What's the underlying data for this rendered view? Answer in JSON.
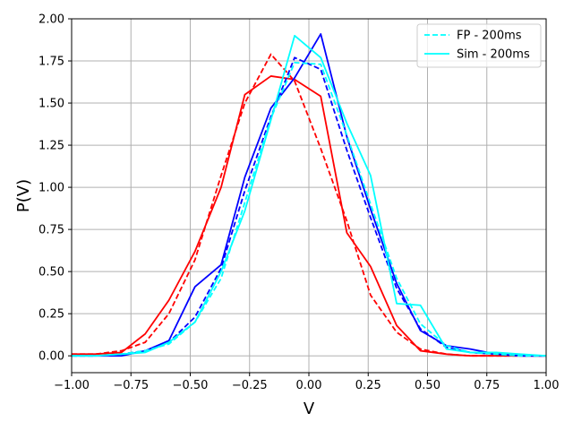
{
  "chart_data": {
    "type": "line",
    "xlabel": "V",
    "ylabel": "P(V)",
    "xlim": [
      -1.0,
      1.0
    ],
    "ylim": [
      -0.1,
      2.0
    ],
    "grid": true,
    "legend_placement": "top-right",
    "x_ticks": [
      "−1.00",
      "−0.75",
      "−0.50",
      "−0.25",
      "0.00",
      "0.25",
      "0.50",
      "0.75",
      "1.00"
    ],
    "x_tick_values": [
      -1.0,
      -0.75,
      -0.5,
      -0.25,
      0.0,
      0.25,
      0.5,
      0.75,
      1.0
    ],
    "y_ticks": [
      "0.00",
      "0.25",
      "0.50",
      "0.75",
      "1.00",
      "1.25",
      "1.50",
      "1.75",
      "2.00"
    ],
    "y_tick_values": [
      0.0,
      0.25,
      0.5,
      0.75,
      1.0,
      1.25,
      1.5,
      1.75,
      2.0
    ],
    "series": [
      {
        "color": "#ff0000",
        "dash": "dashed",
        "x": [
          -1.0,
          -0.9,
          -0.79,
          -0.69,
          -0.59,
          -0.48,
          -0.37,
          -0.27,
          -0.16,
          -0.06,
          0.05,
          0.16,
          0.26,
          0.37,
          0.47,
          0.58,
          0.68,
          0.79,
          0.89,
          1.0
        ],
        "y": [
          0.01,
          0.01,
          0.03,
          0.08,
          0.25,
          0.57,
          1.07,
          1.5,
          1.79,
          1.63,
          1.23,
          0.8,
          0.36,
          0.14,
          0.04,
          0.01,
          0.0,
          0.0,
          0.0,
          0.0
        ]
      },
      {
        "color": "#ff0000",
        "dash": "solid",
        "x": [
          -1.0,
          -0.9,
          -0.79,
          -0.69,
          -0.59,
          -0.48,
          -0.37,
          -0.27,
          -0.16,
          -0.06,
          0.05,
          0.16,
          0.26,
          0.37,
          0.47,
          0.58,
          0.68,
          0.79,
          0.89,
          1.0
        ],
        "y": [
          0.01,
          0.01,
          0.02,
          0.13,
          0.33,
          0.62,
          1.0,
          1.55,
          1.66,
          1.64,
          1.54,
          0.73,
          0.53,
          0.18,
          0.03,
          0.01,
          0.0,
          0.0,
          0.0,
          0.0
        ]
      },
      {
        "color": "#0000ff",
        "dash": "dashed",
        "x": [
          -1.0,
          -0.9,
          -0.79,
          -0.69,
          -0.59,
          -0.48,
          -0.37,
          -0.27,
          -0.16,
          -0.06,
          0.05,
          0.16,
          0.26,
          0.37,
          0.47,
          0.58,
          0.68,
          0.79,
          0.89,
          1.0
        ],
        "y": [
          0.0,
          0.0,
          0.01,
          0.03,
          0.08,
          0.23,
          0.52,
          0.98,
          1.42,
          1.77,
          1.7,
          1.22,
          0.82,
          0.4,
          0.16,
          0.05,
          0.02,
          0.01,
          0.0,
          0.0
        ]
      },
      {
        "color": "#0000ff",
        "dash": "solid",
        "x": [
          -1.0,
          -0.9,
          -0.79,
          -0.69,
          -0.59,
          -0.48,
          -0.37,
          -0.27,
          -0.16,
          -0.06,
          0.05,
          0.16,
          0.26,
          0.37,
          0.47,
          0.58,
          0.68,
          0.79,
          0.89,
          1.0
        ],
        "y": [
          0.0,
          0.0,
          0.0,
          0.03,
          0.09,
          0.41,
          0.54,
          1.06,
          1.47,
          1.65,
          1.91,
          1.3,
          0.87,
          0.43,
          0.15,
          0.06,
          0.04,
          0.01,
          0.0,
          0.0
        ]
      },
      {
        "name": "FP - 200ms",
        "color": "#00ffff",
        "dash": "dashed",
        "x": [
          -1.0,
          -0.9,
          -0.79,
          -0.69,
          -0.59,
          -0.48,
          -0.37,
          -0.27,
          -0.16,
          -0.06,
          0.05,
          0.16,
          0.26,
          0.37,
          0.47,
          0.58,
          0.68,
          0.79,
          0.89,
          1.0
        ],
        "y": [
          0.0,
          0.0,
          0.01,
          0.03,
          0.07,
          0.2,
          0.46,
          0.91,
          1.41,
          1.74,
          1.73,
          1.31,
          0.9,
          0.46,
          0.19,
          0.06,
          0.02,
          0.01,
          0.0,
          0.0
        ]
      },
      {
        "name": "Sim - 200ms",
        "color": "#00ffff",
        "dash": "solid",
        "x": [
          -1.0,
          -0.9,
          -0.79,
          -0.69,
          -0.59,
          -0.48,
          -0.37,
          -0.27,
          -0.16,
          -0.06,
          0.05,
          0.16,
          0.26,
          0.37,
          0.47,
          0.58,
          0.68,
          0.79,
          0.89,
          1.0
        ],
        "y": [
          0.0,
          0.0,
          0.01,
          0.02,
          0.08,
          0.2,
          0.5,
          0.86,
          1.4,
          1.9,
          1.77,
          1.38,
          1.07,
          0.31,
          0.3,
          0.04,
          0.02,
          0.02,
          0.01,
          0.0
        ]
      }
    ]
  }
}
